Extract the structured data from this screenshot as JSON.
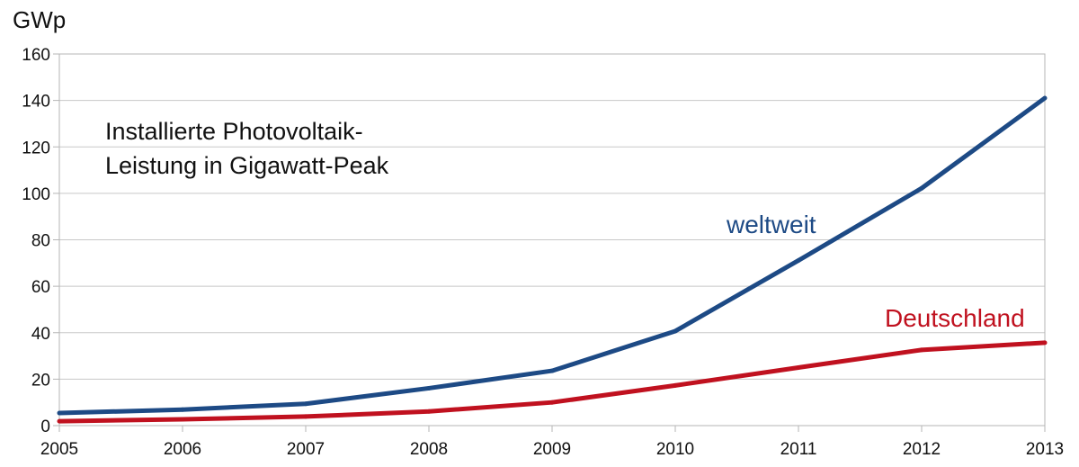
{
  "chart_data": {
    "type": "line",
    "title_lines": [
      "Installierte Photovoltaik-",
      "Leistung in Gigawatt-Peak"
    ],
    "ylabel": "GWp",
    "xlabel": "",
    "x": [
      2005,
      2006,
      2007,
      2008,
      2009,
      2010,
      2011,
      2012,
      2013
    ],
    "xticks": [
      "2005",
      "2006",
      "2007",
      "2008",
      "2009",
      "2010",
      "2011",
      "2012",
      "2013"
    ],
    "ylim": [
      0,
      160
    ],
    "yticks": [
      "0",
      "20",
      "40",
      "60",
      "80",
      "100",
      "120",
      "140",
      "160"
    ],
    "grid": true,
    "series": [
      {
        "name": "weltweit",
        "color": "#1d4a85",
        "values": [
          5.4,
          6.9,
          9.4,
          16.1,
          23.6,
          40.7,
          71.1,
          102.2,
          141
        ]
      },
      {
        "name": "Deutschland",
        "color": "#c0111f",
        "values": [
          1.9,
          2.7,
          3.9,
          6.1,
          10.0,
          17.3,
          25.0,
          32.6,
          35.7
        ]
      }
    ]
  }
}
